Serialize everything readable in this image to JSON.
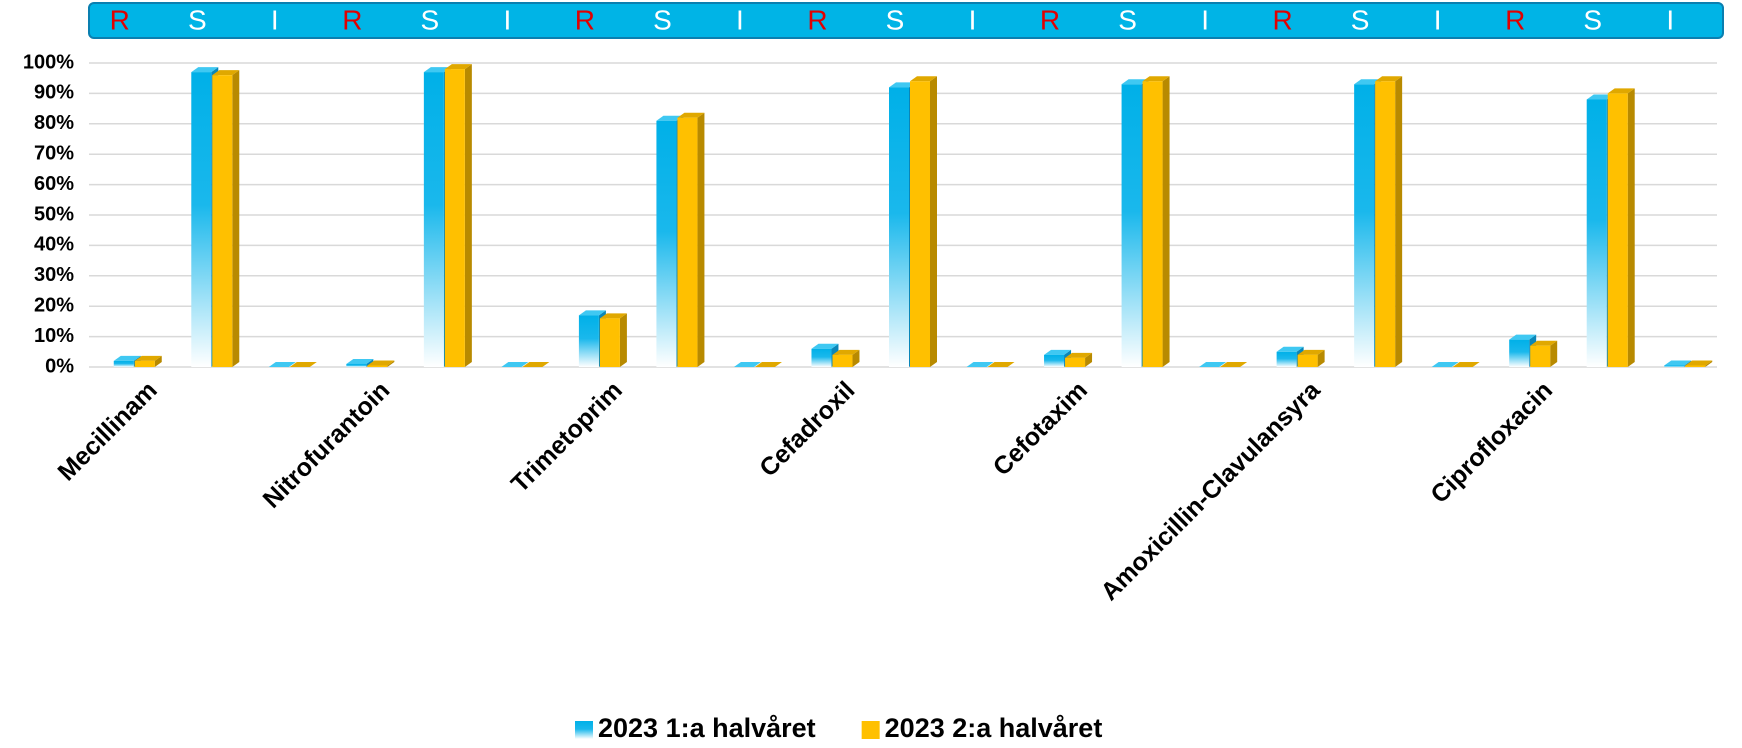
{
  "chart_data": {
    "type": "bar",
    "categories": [
      "Mecillinam",
      null,
      null,
      "Nitrofurantoin",
      null,
      null,
      "Trimetoprim",
      null,
      null,
      "Cefadroxil",
      null,
      null,
      "Cefotaxim",
      null,
      null,
      "Amoxicillin-Clavulansyra",
      null,
      null,
      "Ciprofloxacin",
      null,
      null
    ],
    "band_labels": [
      "R",
      "S",
      "I",
      "R",
      "S",
      "I",
      "R",
      "S",
      "I",
      "R",
      "S",
      "I",
      "R",
      "S",
      "I",
      "R",
      "S",
      "I",
      "R",
      "S",
      "I"
    ],
    "band_label_colors": {
      "R": "#e00000",
      "S": "#ffffff",
      "I": "#ffffff"
    },
    "series": [
      {
        "name": "2023 1:a halvåret",
        "color": "#00b0e8",
        "values": [
          2,
          97,
          0,
          1,
          97,
          0,
          17,
          81,
          0,
          6,
          92,
          0,
          4,
          93,
          0,
          5,
          93,
          0,
          9,
          88,
          0.5
        ]
      },
      {
        "name": "2023 2:a halvåret",
        "color": "#ffc000",
        "values": [
          2,
          96,
          0,
          0.5,
          98,
          0,
          16,
          82,
          0,
          4,
          94,
          0,
          3,
          94,
          0,
          4,
          94,
          0,
          7,
          90,
          0.5
        ]
      }
    ],
    "ylim": [
      0,
      100
    ],
    "yticks": [
      {
        "value": 0,
        "label": "0%"
      },
      {
        "value": 10,
        "label": "10%"
      },
      {
        "value": 20,
        "label": "20%"
      },
      {
        "value": 30,
        "label": "30%"
      },
      {
        "value": 40,
        "label": "40%"
      },
      {
        "value": 50,
        "label": "50%"
      },
      {
        "value": 60,
        "label": "60%"
      },
      {
        "value": 70,
        "label": "70%"
      },
      {
        "value": 80,
        "label": "80%"
      },
      {
        "value": 90,
        "label": "90%"
      },
      {
        "value": 100,
        "label": "100%"
      }
    ],
    "grid": true,
    "legend": "bottom"
  }
}
